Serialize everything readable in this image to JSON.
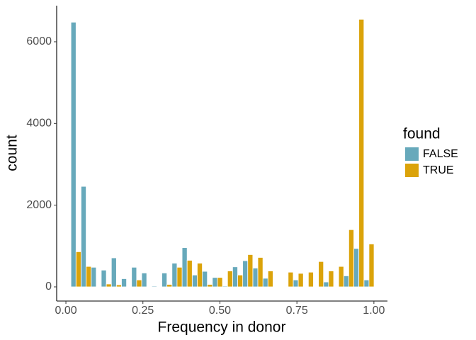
{
  "chart_data": {
    "type": "histogram",
    "x_label": "Frequency in donor",
    "y_label": "count",
    "legend_title": "found",
    "bins": [
      0.0164,
      0.0492,
      0.082,
      0.1148,
      0.1476,
      0.1804,
      0.2132,
      0.246,
      0.2788,
      0.3116,
      0.3444,
      0.3772,
      0.41,
      0.4428,
      0.4756,
      0.5084,
      0.5412,
      0.574,
      0.6068,
      0.6396,
      0.6724,
      0.7052,
      0.738,
      0.7708,
      0.8036,
      0.8364,
      0.8692,
      0.902,
      0.9348,
      0.9676,
      1.0004
    ],
    "series": [
      {
        "name": "FALSE",
        "color": "#67a9bb",
        "values": [
          6480,
          2460,
          480,
          410,
          710,
          200,
          480,
          340,
          20,
          340,
          580,
          960,
          290,
          380,
          230,
          20,
          490,
          640,
          460,
          210,
          0,
          0,
          170,
          0,
          0,
          120,
          0,
          270,
          940,
          170
        ]
      },
      {
        "name": "TRUE",
        "color": "#dba30a",
        "values": [
          860,
          500,
          0,
          70,
          50,
          0,
          170,
          0,
          0,
          60,
          480,
          650,
          580,
          60,
          230,
          390,
          290,
          790,
          720,
          390,
          0,
          360,
          330,
          360,
          620,
          390,
          500,
          1400,
          6550,
          1050
        ]
      }
    ],
    "xlim": [
      -0.03,
      1.044
    ],
    "ylim": [
      -347,
      6884
    ],
    "xticks": [
      {
        "value": 0,
        "label": "0.00"
      },
      {
        "value": 0.25,
        "label": "0.25"
      },
      {
        "value": 0.5,
        "label": "0.50"
      },
      {
        "value": 0.75,
        "label": "0.75"
      },
      {
        "value": 1,
        "label": "1.00"
      }
    ],
    "yticks": [
      0,
      2000,
      4000,
      6000
    ],
    "dodge": true
  }
}
